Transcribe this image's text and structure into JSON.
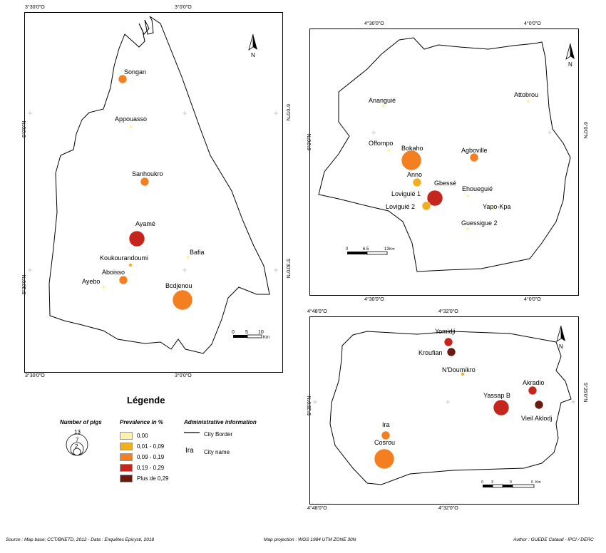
{
  "colors": {
    "c0": "#FBF3A8",
    "c1": "#F2AE1C",
    "c2": "#F37F20",
    "c3": "#C4261C",
    "c4": "#6B1A0D"
  },
  "map1": {
    "ticks": {
      "top_left": "3°30'0\"O",
      "top_right": "3°0'0\"O",
      "bottom_left": "3°30'0\"O",
      "bottom_right": "3°0'0\"O",
      "left_upper": "6°0'0\"N",
      "left_lower": "5°30'0\"N",
      "right_upper": "6°0'0\"N",
      "right_lower": "5°30'0\"N"
    },
    "north": "N",
    "scale": {
      "labels": [
        "0",
        "5",
        "10"
      ],
      "unit": "Km"
    },
    "cities": [
      {
        "name": "Songan",
        "cls": 2,
        "size": "s"
      },
      {
        "name": "Appouasso",
        "cls": 0,
        "size": "xs"
      },
      {
        "name": "Sanhoukro",
        "cls": 2,
        "size": "s"
      },
      {
        "name": "Ayamé",
        "cls": 3,
        "size": "m"
      },
      {
        "name": "Bafia",
        "cls": 0,
        "size": "xs"
      },
      {
        "name": "Koukourandoumi",
        "cls": 1,
        "size": "xs"
      },
      {
        "name": "Aboisso",
        "cls": 2,
        "size": "s"
      },
      {
        "name": "Ayebo",
        "cls": 0,
        "size": "xs"
      },
      {
        "name": "Bcdjenou",
        "cls": 2,
        "size": "l"
      }
    ]
  },
  "map2": {
    "ticks": {
      "top_left": "4°30'0\"O",
      "top_right": "4°0'0\"O",
      "bottom_left": "4°30'0\"O",
      "bottom_right": "4°0'0\"O",
      "left": "6°0'0\"N",
      "right": "6°0'0\"N"
    },
    "north": "N",
    "scale": {
      "labels": [
        "0",
        "6.5",
        "13"
      ],
      "unit": "Km"
    },
    "cities": [
      {
        "name": "Ananguié",
        "cls": 0,
        "size": "xs"
      },
      {
        "name": "Attobrou",
        "cls": 0,
        "size": "xs"
      },
      {
        "name": "Offompo",
        "cls": 0,
        "size": "xs"
      },
      {
        "name": "Bokaho",
        "cls": 2,
        "size": "l"
      },
      {
        "name": "Agboville",
        "cls": 2,
        "size": "s"
      },
      {
        "name": "Anno",
        "cls": 1,
        "size": "s"
      },
      {
        "name": "Gbessé",
        "cls": 0,
        "size": "xs"
      },
      {
        "name": "Loviguié 1",
        "cls": 3,
        "size": "m"
      },
      {
        "name": "Ehoueguié",
        "cls": 0,
        "size": "xs"
      },
      {
        "name": "Loviguié 2",
        "cls": 1,
        "size": "s"
      },
      {
        "name": "Yapo-Kpa",
        "cls": 0,
        "size": "xs"
      },
      {
        "name": "Guessigue 2",
        "cls": 0,
        "size": "xs"
      }
    ]
  },
  "map3": {
    "ticks": {
      "top_left": "4°48'0\"O",
      "top_right": "4°32'0\"O",
      "bottom_left": "4°48'0\"O",
      "bottom_right": "4°32'0\"O",
      "left": "5°25'0\"N",
      "right": "5°25'0\"N"
    },
    "north": "N",
    "scale": {
      "labels": [
        "0",
        "3",
        "0",
        "6"
      ],
      "unit": "Km"
    },
    "cities": [
      {
        "name": "Yomidji",
        "cls": 3,
        "size": "s"
      },
      {
        "name": "Kroufian",
        "cls": 4,
        "size": "s"
      },
      {
        "name": "N'Doumikro",
        "cls": 1,
        "size": "xs"
      },
      {
        "name": "Akradio",
        "cls": 3,
        "size": "s"
      },
      {
        "name": "Yassap B",
        "cls": 3,
        "size": "m"
      },
      {
        "name": "Vieil Aklodj",
        "cls": 4,
        "size": "s"
      },
      {
        "name": "Ira",
        "cls": 2,
        "size": "s"
      },
      {
        "name": "Cosrou",
        "cls": 2,
        "size": "l"
      }
    ]
  },
  "legend": {
    "title": "Légende",
    "pigs_heading": "Number of pigs",
    "pigs_values": [
      "13",
      "7",
      "2"
    ],
    "prevalence_heading": "Prevalence in %",
    "classes": [
      "0,00",
      "0,01 - 0,09",
      "0,09 - 0,19",
      "0,19 - 0,29",
      "Plus de 0,29"
    ],
    "admin_heading": "Administrative information",
    "border_label": "City Border",
    "city_sample": "Ira",
    "city_label": "City name"
  },
  "footer": {
    "source": "Source : Map base; CCT/BNETD, 2012 - Data : Enquêtes Epicysti, 2018",
    "projection": "Map projection : WGS 1984 UTM ZONE 30N",
    "author": "Author : GUEDE Cataud - IPCI / DERC"
  }
}
